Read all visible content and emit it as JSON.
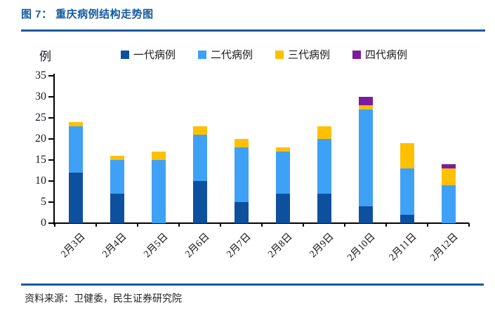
{
  "header": {
    "title": "图 7： 重庆病例结构走势图"
  },
  "chart_data": {
    "type": "bar",
    "stacked": true,
    "title": "重庆病例结构走势图",
    "unit_label": "例",
    "categories": [
      "2月3日",
      "2月4日",
      "2月5日",
      "2月6日",
      "2月7日",
      "2月8日",
      "2月9日",
      "2月10日",
      "2月11日",
      "2月12日"
    ],
    "series": [
      {
        "name": "一代病例",
        "color": "#0D509E",
        "values": [
          12,
          7,
          0,
          10,
          5,
          7,
          7,
          4,
          2,
          0
        ]
      },
      {
        "name": "二代病例",
        "color": "#3FA1F5",
        "values": [
          11,
          8,
          15,
          11,
          13,
          10,
          13,
          23,
          11,
          9
        ]
      },
      {
        "name": "三代病例",
        "color": "#FFC000",
        "values": [
          1,
          1,
          2,
          2,
          2,
          1,
          3,
          1,
          6,
          4
        ]
      },
      {
        "name": "四代病例",
        "color": "#7D1A9E",
        "values": [
          0,
          0,
          0,
          0,
          0,
          0,
          0,
          2,
          0,
          1
        ]
      }
    ],
    "totals": [
      24,
      16,
      17,
      23,
      20,
      18,
      23,
      30,
      19,
      14
    ],
    "ylim": [
      0,
      35
    ],
    "ytick_step": 5,
    "yticks": [
      0,
      5,
      10,
      15,
      20,
      25,
      30,
      35
    ],
    "grid": false,
    "legend_position": "top"
  },
  "footer": {
    "source": "资料来源：卫健委，民生证券研究院"
  },
  "colors": {
    "title": "#135A9E",
    "rule": "#135A9E",
    "axis": "#000000"
  }
}
